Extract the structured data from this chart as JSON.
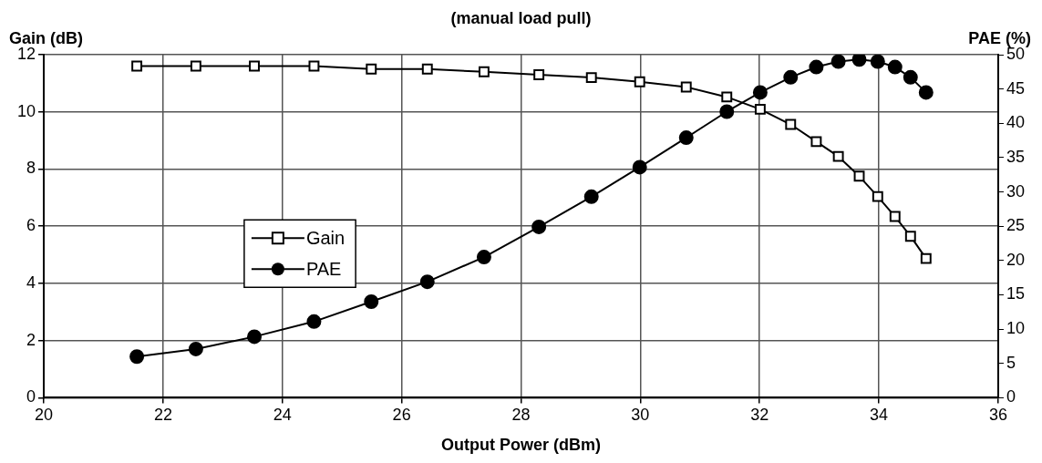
{
  "chart_data": {
    "type": "line",
    "title": "(manual load pull)",
    "xlabel": "Output Power (dBm)",
    "ylabel": "Gain (dB)",
    "y2label": "PAE (%)",
    "x": [
      21.56,
      22.55,
      23.53,
      24.53,
      25.49,
      26.43,
      27.38,
      28.3,
      29.18,
      29.99,
      30.77,
      31.45,
      32.01,
      32.52,
      32.95,
      33.32,
      33.67,
      33.98,
      34.27,
      34.53,
      34.79
    ],
    "series": [
      {
        "name": "Gain",
        "color": "#000000",
        "marker": "square",
        "values": [
          11.6,
          11.6,
          11.6,
          11.6,
          11.5,
          11.5,
          11.4,
          11.3,
          11.2,
          11.05,
          10.87,
          10.52,
          10.09,
          9.56,
          8.96,
          8.44,
          7.75,
          7.04,
          6.34,
          5.65,
          4.87
        ]
      },
      {
        "name": "PAE",
        "color": "#000000",
        "marker": "circle",
        "axis": "y2",
        "values": [
          6.0,
          7.1,
          8.9,
          11.1,
          14.0,
          16.9,
          20.5,
          24.9,
          29.3,
          33.6,
          37.9,
          41.7,
          44.5,
          46.7,
          48.2,
          49.0,
          49.3,
          49.0,
          48.2,
          46.7,
          44.5
        ]
      }
    ],
    "xlim": [
      20,
      36
    ],
    "xticks": [
      20,
      22,
      24,
      26,
      28,
      30,
      32,
      34,
      36
    ],
    "ylim": [
      0,
      12
    ],
    "yticks": [
      0,
      2,
      4,
      6,
      8,
      10,
      12
    ],
    "y2lim": [
      0,
      50
    ],
    "y2ticks": [
      0,
      5,
      10,
      15,
      20,
      25,
      30,
      35,
      40,
      45,
      50
    ],
    "grid": true,
    "legend": "center left",
    "line_style": "solid"
  }
}
